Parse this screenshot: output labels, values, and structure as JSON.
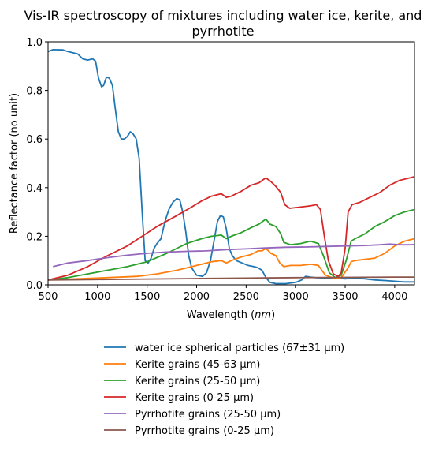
{
  "chart_data": {
    "type": "line",
    "title_line1": "Vis-IR spectroscopy of mixtures including water ice, kerite, and",
    "title_line2": "pyrrhotite",
    "xlabel": "Wavelength (nm)",
    "ylabel": "Reflectance factor (no unit)",
    "xlim": [
      500,
      4200
    ],
    "ylim": [
      0,
      1.0
    ],
    "x_ticks": [
      500,
      1000,
      1500,
      2000,
      2500,
      3000,
      3500,
      4000
    ],
    "y_ticks": [
      0.0,
      0.2,
      0.4,
      0.6,
      0.8,
      1.0
    ],
    "y_tick_labels": [
      "0.0",
      "0.2",
      "0.4",
      "0.6",
      "0.8",
      "1.0"
    ],
    "grid": false,
    "legend_placement": "below plot",
    "series": [
      {
        "name": "water ice spherical particles (67±31 µm)",
        "color": "#1f77b4",
        "points": [
          [
            500,
            0.96
          ],
          [
            550,
            0.968
          ],
          [
            650,
            0.967
          ],
          [
            700,
            0.96
          ],
          [
            800,
            0.95
          ],
          [
            850,
            0.93
          ],
          [
            900,
            0.925
          ],
          [
            950,
            0.93
          ],
          [
            980,
            0.92
          ],
          [
            1010,
            0.85
          ],
          [
            1040,
            0.815
          ],
          [
            1060,
            0.82
          ],
          [
            1090,
            0.855
          ],
          [
            1120,
            0.85
          ],
          [
            1150,
            0.82
          ],
          [
            1180,
            0.72
          ],
          [
            1210,
            0.63
          ],
          [
            1240,
            0.6
          ],
          [
            1270,
            0.6
          ],
          [
            1300,
            0.61
          ],
          [
            1330,
            0.63
          ],
          [
            1360,
            0.62
          ],
          [
            1390,
            0.6
          ],
          [
            1420,
            0.52
          ],
          [
            1450,
            0.3
          ],
          [
            1480,
            0.1
          ],
          [
            1510,
            0.09
          ],
          [
            1540,
            0.11
          ],
          [
            1570,
            0.15
          ],
          [
            1600,
            0.17
          ],
          [
            1640,
            0.19
          ],
          [
            1680,
            0.26
          ],
          [
            1720,
            0.31
          ],
          [
            1760,
            0.34
          ],
          [
            1800,
            0.355
          ],
          [
            1830,
            0.35
          ],
          [
            1860,
            0.3
          ],
          [
            1890,
            0.22
          ],
          [
            1920,
            0.12
          ],
          [
            1950,
            0.07
          ],
          [
            2000,
            0.04
          ],
          [
            2060,
            0.035
          ],
          [
            2100,
            0.05
          ],
          [
            2140,
            0.1
          ],
          [
            2180,
            0.19
          ],
          [
            2210,
            0.26
          ],
          [
            2240,
            0.285
          ],
          [
            2270,
            0.28
          ],
          [
            2300,
            0.23
          ],
          [
            2330,
            0.15
          ],
          [
            2360,
            0.12
          ],
          [
            2400,
            0.1
          ],
          [
            2460,
            0.09
          ],
          [
            2520,
            0.08
          ],
          [
            2580,
            0.075
          ],
          [
            2620,
            0.07
          ],
          [
            2660,
            0.06
          ],
          [
            2700,
            0.03
          ],
          [
            2740,
            0.01
          ],
          [
            2800,
            0.005
          ],
          [
            2900,
            0.005
          ],
          [
            3000,
            0.01
          ],
          [
            3060,
            0.02
          ],
          [
            3100,
            0.035
          ],
          [
            3150,
            0.032
          ],
          [
            3200,
            0.03
          ],
          [
            3300,
            0.028
          ],
          [
            3400,
            0.028
          ],
          [
            3500,
            0.025
          ],
          [
            3600,
            0.028
          ],
          [
            3700,
            0.025
          ],
          [
            3800,
            0.02
          ],
          [
            3900,
            0.018
          ],
          [
            4000,
            0.015
          ],
          [
            4100,
            0.012
          ],
          [
            4200,
            0.012
          ]
        ]
      },
      {
        "name": "Kerite grains (45-63 µm)",
        "color": "#ff7f0e",
        "points": [
          [
            500,
            0.02
          ],
          [
            800,
            0.025
          ],
          [
            1100,
            0.03
          ],
          [
            1400,
            0.035
          ],
          [
            1600,
            0.045
          ],
          [
            1800,
            0.06
          ],
          [
            2000,
            0.08
          ],
          [
            2150,
            0.095
          ],
          [
            2250,
            0.1
          ],
          [
            2300,
            0.09
          ],
          [
            2350,
            0.1
          ],
          [
            2450,
            0.115
          ],
          [
            2550,
            0.125
          ],
          [
            2620,
            0.14
          ],
          [
            2660,
            0.14
          ],
          [
            2700,
            0.15
          ],
          [
            2750,
            0.13
          ],
          [
            2800,
            0.12
          ],
          [
            2840,
            0.09
          ],
          [
            2880,
            0.075
          ],
          [
            2950,
            0.08
          ],
          [
            3050,
            0.08
          ],
          [
            3150,
            0.085
          ],
          [
            3230,
            0.08
          ],
          [
            3300,
            0.04
          ],
          [
            3400,
            0.025
          ],
          [
            3460,
            0.03
          ],
          [
            3530,
            0.07
          ],
          [
            3560,
            0.095
          ],
          [
            3600,
            0.1
          ],
          [
            3700,
            0.105
          ],
          [
            3800,
            0.11
          ],
          [
            3900,
            0.13
          ],
          [
            4000,
            0.16
          ],
          [
            4100,
            0.18
          ],
          [
            4200,
            0.19
          ]
        ]
      },
      {
        "name": "Kerite grains (25-50 µm)",
        "color": "#2ca02c",
        "points": [
          [
            500,
            0.02
          ],
          [
            700,
            0.03
          ],
          [
            900,
            0.045
          ],
          [
            1100,
            0.06
          ],
          [
            1300,
            0.075
          ],
          [
            1500,
            0.095
          ],
          [
            1700,
            0.13
          ],
          [
            1900,
            0.17
          ],
          [
            2050,
            0.19
          ],
          [
            2150,
            0.2
          ],
          [
            2250,
            0.205
          ],
          [
            2300,
            0.19
          ],
          [
            2350,
            0.2
          ],
          [
            2450,
            0.215
          ],
          [
            2550,
            0.235
          ],
          [
            2630,
            0.25
          ],
          [
            2680,
            0.265
          ],
          [
            2700,
            0.27
          ],
          [
            2740,
            0.25
          ],
          [
            2800,
            0.24
          ],
          [
            2850,
            0.21
          ],
          [
            2880,
            0.175
          ],
          [
            2950,
            0.165
          ],
          [
            3050,
            0.17
          ],
          [
            3150,
            0.18
          ],
          [
            3230,
            0.17
          ],
          [
            3280,
            0.12
          ],
          [
            3340,
            0.05
          ],
          [
            3400,
            0.03
          ],
          [
            3460,
            0.04
          ],
          [
            3510,
            0.1
          ],
          [
            3560,
            0.18
          ],
          [
            3600,
            0.19
          ],
          [
            3700,
            0.21
          ],
          [
            3800,
            0.24
          ],
          [
            3900,
            0.26
          ],
          [
            4000,
            0.285
          ],
          [
            4100,
            0.3
          ],
          [
            4200,
            0.31
          ]
        ]
      },
      {
        "name": "Kerite grains (0-25 µm)",
        "color": "#d62728",
        "points": [
          [
            500,
            0.02
          ],
          [
            700,
            0.04
          ],
          [
            900,
            0.075
          ],
          [
            1100,
            0.12
          ],
          [
            1300,
            0.16
          ],
          [
            1450,
            0.2
          ],
          [
            1600,
            0.24
          ],
          [
            1800,
            0.285
          ],
          [
            1950,
            0.32
          ],
          [
            2050,
            0.345
          ],
          [
            2150,
            0.365
          ],
          [
            2250,
            0.375
          ],
          [
            2300,
            0.36
          ],
          [
            2350,
            0.365
          ],
          [
            2450,
            0.385
          ],
          [
            2550,
            0.41
          ],
          [
            2630,
            0.42
          ],
          [
            2680,
            0.435
          ],
          [
            2700,
            0.44
          ],
          [
            2750,
            0.425
          ],
          [
            2800,
            0.405
          ],
          [
            2850,
            0.38
          ],
          [
            2890,
            0.33
          ],
          [
            2940,
            0.315
          ],
          [
            3050,
            0.32
          ],
          [
            3150,
            0.325
          ],
          [
            3210,
            0.33
          ],
          [
            3250,
            0.31
          ],
          [
            3290,
            0.2
          ],
          [
            3330,
            0.1
          ],
          [
            3380,
            0.045
          ],
          [
            3430,
            0.035
          ],
          [
            3460,
            0.05
          ],
          [
            3500,
            0.15
          ],
          [
            3530,
            0.3
          ],
          [
            3570,
            0.33
          ],
          [
            3650,
            0.34
          ],
          [
            3750,
            0.36
          ],
          [
            3850,
            0.38
          ],
          [
            3950,
            0.41
          ],
          [
            4050,
            0.43
          ],
          [
            4150,
            0.44
          ],
          [
            4200,
            0.445
          ]
        ]
      },
      {
        "name": "Pyrrhotite grains (25-50 µm)",
        "color": "#9467bd",
        "points": [
          [
            550,
            0.075
          ],
          [
            700,
            0.09
          ],
          [
            900,
            0.1
          ],
          [
            1100,
            0.112
          ],
          [
            1300,
            0.122
          ],
          [
            1500,
            0.13
          ],
          [
            1700,
            0.135
          ],
          [
            1900,
            0.138
          ],
          [
            2100,
            0.14
          ],
          [
            2300,
            0.145
          ],
          [
            2500,
            0.148
          ],
          [
            2700,
            0.152
          ],
          [
            2900,
            0.155
          ],
          [
            3100,
            0.156
          ],
          [
            3300,
            0.158
          ],
          [
            3500,
            0.16
          ],
          [
            3700,
            0.162
          ],
          [
            3850,
            0.165
          ],
          [
            3950,
            0.168
          ],
          [
            4050,
            0.165
          ],
          [
            4150,
            0.165
          ],
          [
            4200,
            0.166
          ]
        ]
      },
      {
        "name": "Pyrrhotite grains (0-25 µm)",
        "color": "#8c564b",
        "points": [
          [
            500,
            0.02
          ],
          [
            1000,
            0.022
          ],
          [
            1500,
            0.024
          ],
          [
            2000,
            0.026
          ],
          [
            2500,
            0.028
          ],
          [
            3000,
            0.03
          ],
          [
            3500,
            0.031
          ],
          [
            4000,
            0.032
          ],
          [
            4200,
            0.032
          ]
        ]
      }
    ]
  }
}
